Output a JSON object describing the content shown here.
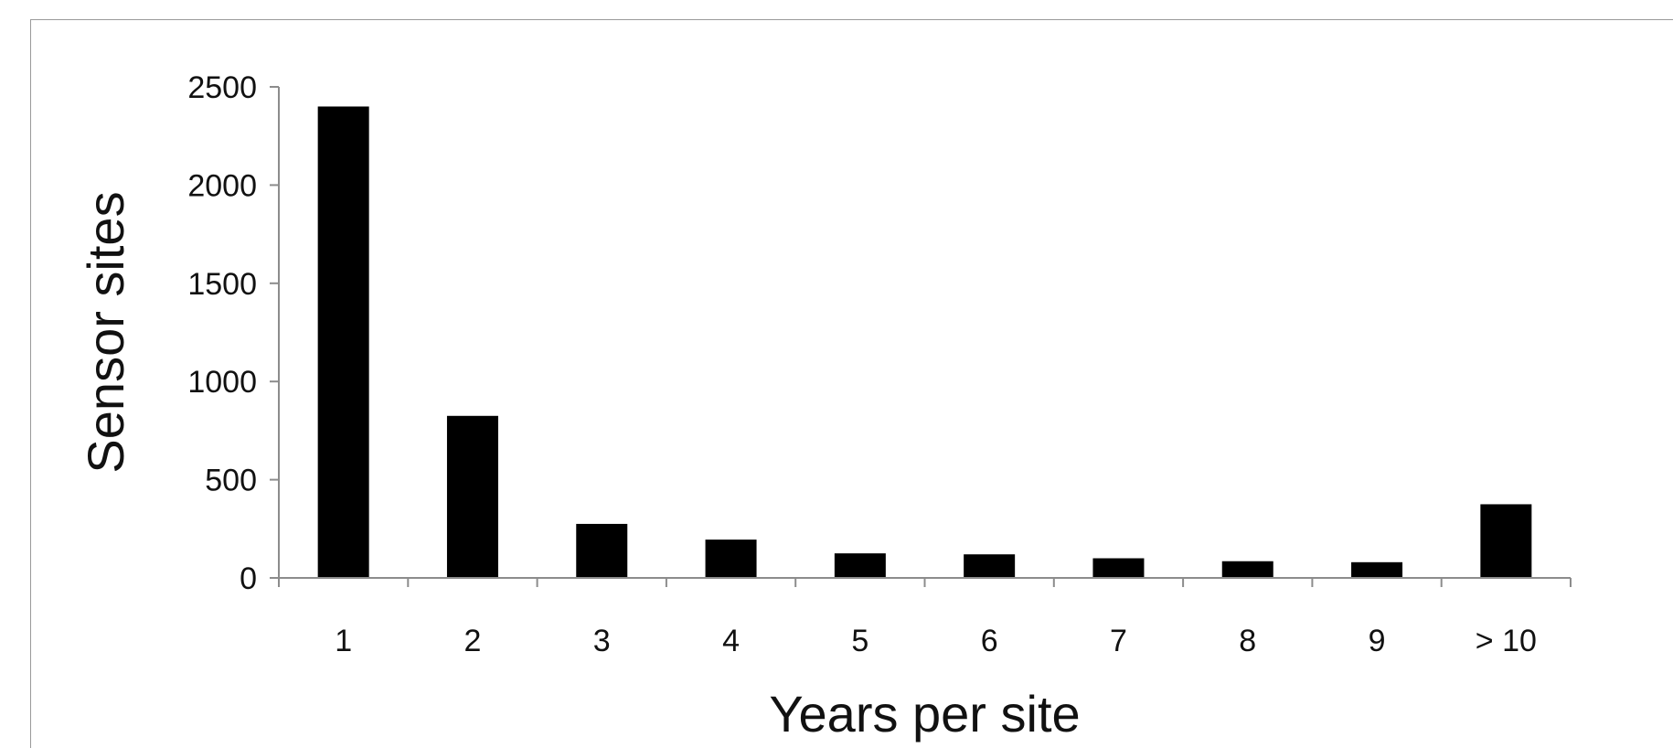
{
  "chart_data": {
    "type": "bar",
    "categories": [
      "1",
      "2",
      "3",
      "4",
      "5",
      "6",
      "7",
      "8",
      "9",
      "> 10"
    ],
    "values": [
      2400,
      825,
      275,
      195,
      125,
      120,
      100,
      85,
      80,
      375
    ],
    "title": "",
    "xlabel": "Years per site",
    "ylabel": "Sensor sites",
    "ylim": [
      0,
      2500
    ],
    "yticks": [
      0,
      500,
      1000,
      1500,
      2000,
      2500
    ],
    "grid": false,
    "legend": "none",
    "bar_color": "#000000",
    "axis_color": "#8c8c8c"
  }
}
